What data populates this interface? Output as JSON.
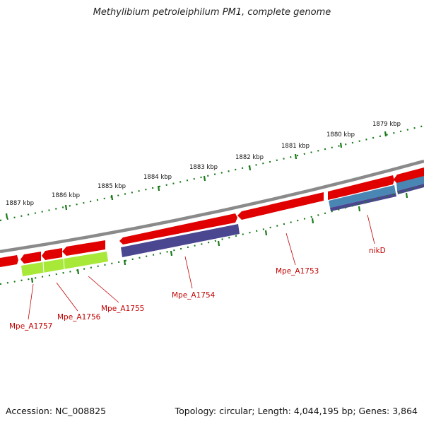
{
  "title": "Methylibium petroleiphilum PM1, complete genome",
  "footer": {
    "accession": "Accession: NC_008825",
    "summary": "Topology: circular; Length: 4,044,195 bp; Genes: 3,864"
  },
  "ruler_labels": [
    "1879 kbp",
    "1880 kbp",
    "1881 kbp",
    "1882 kbp",
    "1883 kbp",
    "1884 kbp",
    "1885 kbp",
    "1886 kbp",
    "1887 kbp"
  ],
  "gene_labels": [
    "Mpe_A1757",
    "Mpe_A1756",
    "Mpe_A1755",
    "Mpe_A1754",
    "Mpe_A1753",
    "nikD"
  ],
  "colors": {
    "backbone": "#8a8a8a",
    "cds": "#e00000",
    "protein_dark": "#4a4690",
    "protein_blue": "#4a86b4",
    "protein_green": "#a8e838",
    "ruler": "#1a7a1a",
    "label": "#c00000"
  }
}
